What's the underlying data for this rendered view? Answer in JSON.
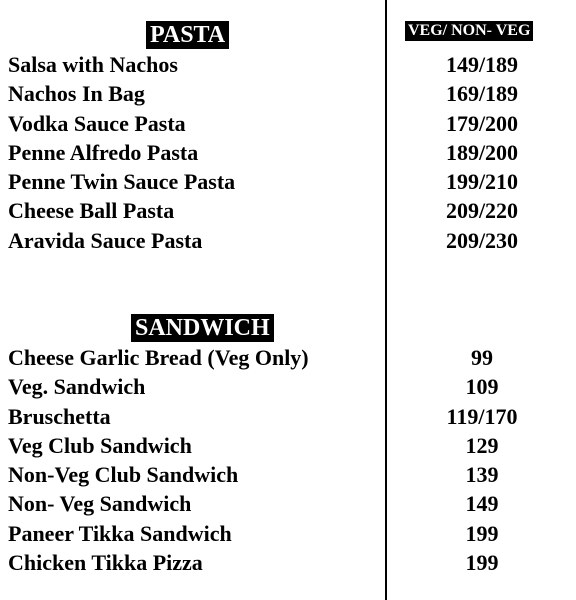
{
  "pasta": {
    "heading": "PASTA",
    "column_heading": "VEG/ NON- VEG",
    "items": [
      {
        "name": "Salsa with Nachos",
        "price": "149/189"
      },
      {
        "name": "Nachos In Bag",
        "price": "169/189"
      },
      {
        "name": "Vodka Sauce Pasta",
        "price": "179/200"
      },
      {
        "name": "Penne Alfredo Pasta",
        "price": "189/200"
      },
      {
        "name": "Penne Twin Sauce Pasta",
        "price": "199/210"
      },
      {
        "name": "Cheese Ball Pasta",
        "price": "209/220"
      },
      {
        "name": "Aravida Sauce Pasta",
        "price": "209/230"
      }
    ]
  },
  "sandwich": {
    "heading": "SANDWICH",
    "items": [
      {
        "name": "Cheese Garlic Bread (Veg Only)",
        "price": "99"
      },
      {
        "name": "Veg. Sandwich",
        "price": "109"
      },
      {
        "name": "Bruschetta",
        "price": "119/170"
      },
      {
        "name": "Veg Club Sandwich",
        "price": "129"
      },
      {
        "name": "Non-Veg Club Sandwich",
        "price": "139"
      },
      {
        "name": "Non- Veg Sandwich",
        "price": "149"
      },
      {
        "name": "Paneer Tikka Sandwich",
        "price": "199"
      },
      {
        "name": "Chicken Tikka Pizza",
        "price": "199"
      }
    ]
  },
  "colors": {
    "text": "#000000",
    "background": "#ffffff",
    "heading_bg": "#000000",
    "heading_text": "#ffffff"
  }
}
